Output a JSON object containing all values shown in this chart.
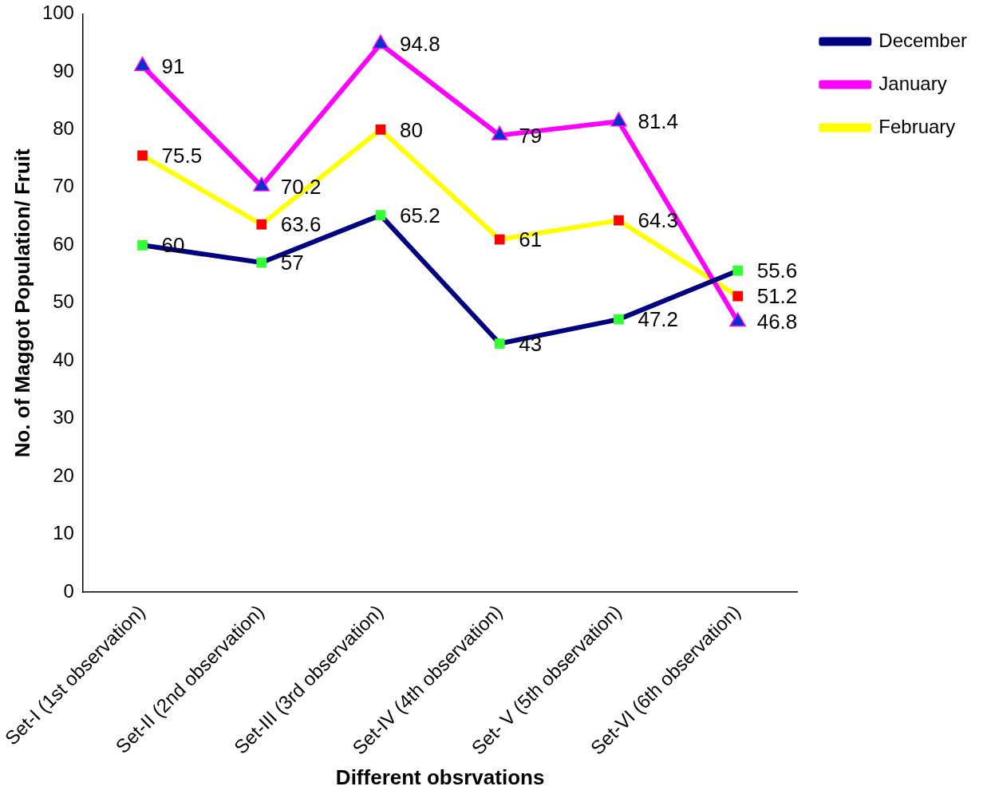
{
  "chart_data": {
    "type": "line",
    "xlabel": "Different obsrvations",
    "ylabel": "No. of Maggot Population/ Fruit",
    "categories": [
      "Set-I (1st observation)",
      "Set-II (2nd observation)",
      "Set-III (3rd observation)",
      "Set-IV (4th observation)",
      "Set- V (5th observation)",
      "Set-VI (6th observation)"
    ],
    "series": [
      {
        "name": "December",
        "color": "#000080",
        "marker": "square",
        "colors": [
          "#33ff33",
          "#33ff33",
          "#33ff33",
          "#33ff33",
          "#33ff33",
          "#33ff33"
        ],
        "values": [
          60,
          57,
          65.2,
          43,
          47.2,
          55.6
        ]
      },
      {
        "name": "January",
        "color": "#ff00ff",
        "marker": "triangle",
        "colors": [
          "#0033cc",
          "#0033cc",
          "#0033cc",
          "#0033cc",
          "#0033cc",
          "#0033cc"
        ],
        "values": [
          91,
          70.2,
          94.8,
          79,
          81.4,
          46.8
        ]
      },
      {
        "name": "February",
        "color": "#ffff00",
        "marker": "square",
        "colors": [
          "#ff0000",
          "#ff0000",
          "#ff0000",
          "#ff0000",
          "#ff0000",
          "#ff0000"
        ],
        "values": [
          75.5,
          63.6,
          80,
          61,
          64.3,
          51.2
        ]
      }
    ],
    "ylim": [
      0,
      100
    ],
    "yticks": [
      0,
      10,
      20,
      30,
      40,
      50,
      60,
      70,
      80,
      90,
      100
    ],
    "grid": false,
    "legend": "top right",
    "data_labels": true,
    "line_style": "solid"
  }
}
